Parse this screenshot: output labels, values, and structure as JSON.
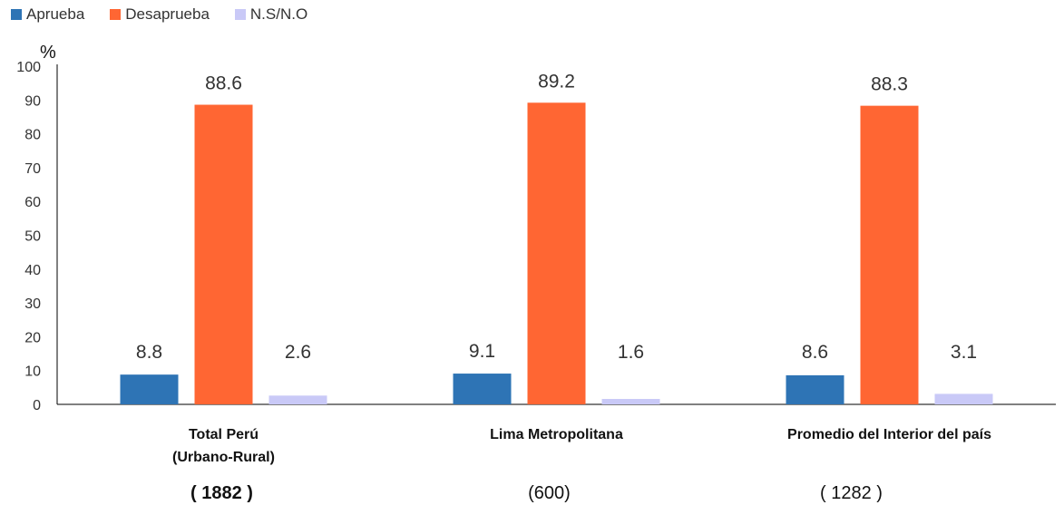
{
  "chart_data": {
    "type": "bar",
    "ylabel": "%",
    "ylim": [
      0,
      100
    ],
    "yticks": [
      0,
      10,
      20,
      30,
      40,
      50,
      60,
      70,
      80,
      90,
      100
    ],
    "categories": [
      {
        "lines": [
          "Total Perú",
          "(Urbano-Rural)"
        ],
        "n": "( 1882 )"
      },
      {
        "lines": [
          "Lima Metropolitana"
        ],
        "n": "(600)"
      },
      {
        "lines": [
          "Promedio del Interior del país"
        ],
        "n": "( 1282 )"
      }
    ],
    "series": [
      {
        "name": "Aprueba",
        "color": "#2e74b5",
        "values": [
          8.8,
          9.1,
          8.6
        ],
        "labels": [
          "8.8",
          "9.1",
          "8.6"
        ]
      },
      {
        "name": "Desaprueba",
        "color": "#ff6633",
        "values": [
          88.6,
          89.2,
          88.3
        ],
        "labels": [
          "88.6",
          "89.2",
          "88.3"
        ]
      },
      {
        "name": "N.S/N.O",
        "color": "#c9c9f7",
        "values": [
          2.6,
          1.6,
          3.1
        ],
        "labels": [
          "2.6",
          "1.6",
          "3.1"
        ]
      }
    ],
    "legend_position": "top-left",
    "grid": false
  }
}
